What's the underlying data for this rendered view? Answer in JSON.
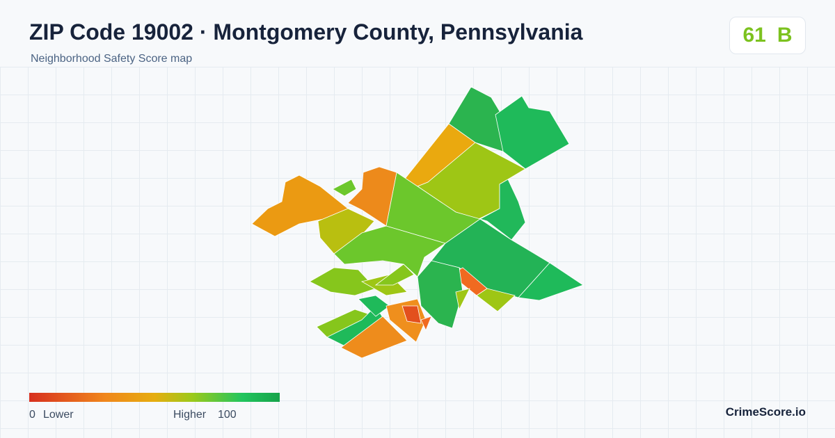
{
  "header": {
    "title": "ZIP Code 19002 · Montgomery County, Pennsylvania",
    "subtitle": "Neighborhood Safety Score map"
  },
  "badge": {
    "score": 61,
    "grade": "B"
  },
  "legend": {
    "min": 0,
    "min_label": "Lower",
    "max_label": "Higher",
    "max": 100
  },
  "brand": "CrimeScore.io"
}
